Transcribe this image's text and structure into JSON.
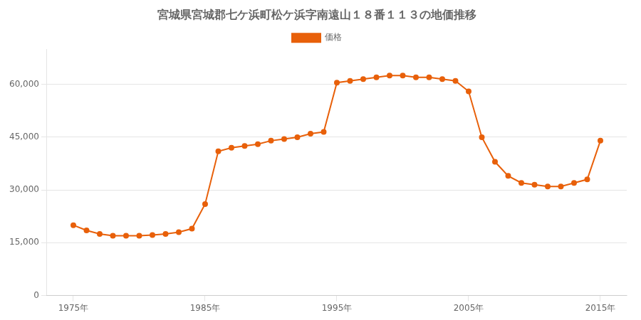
{
  "chart_data": {
    "type": "line",
    "title": "宮城県宮城郡七ケ浜町松ケ浜字南遠山１８番１１３の地価推移",
    "x": [
      1975,
      1976,
      1977,
      1978,
      1979,
      1980,
      1981,
      1982,
      1983,
      1984,
      1985,
      1986,
      1987,
      1988,
      1989,
      1990,
      1991,
      1992,
      1993,
      1994,
      1995,
      1996,
      1997,
      1998,
      1999,
      2000,
      2001,
      2002,
      2003,
      2004,
      2005,
      2006,
      2007,
      2008,
      2009,
      2010,
      2011,
      2012,
      2013,
      2014,
      2015
    ],
    "series": [
      {
        "name": "価格",
        "color": "#e8600a",
        "marker": "circle",
        "values": [
          20000,
          18500,
          17500,
          17000,
          17000,
          17000,
          17200,
          17500,
          18000,
          19000,
          26000,
          41000,
          42000,
          42500,
          43000,
          44000,
          44500,
          45000,
          46000,
          46500,
          60500,
          61000,
          61500,
          62000,
          62500,
          62500,
          62000,
          62000,
          61500,
          61000,
          58000,
          45000,
          38000,
          34000,
          32000,
          31500,
          31000,
          31000,
          32000,
          33000,
          44000
        ]
      }
    ],
    "xlim": [
      1973,
      2017
    ],
    "xticks": [
      {
        "value": 1975,
        "label": "1975年"
      },
      {
        "value": 1985,
        "label": "1985年"
      },
      {
        "value": 1995,
        "label": "1995年"
      },
      {
        "value": 2005,
        "label": "2005年"
      },
      {
        "value": 2015,
        "label": "2015年"
      }
    ],
    "ylim": [
      0,
      70000
    ],
    "yticks": [
      0,
      {
        "value": 15000,
        "label": "15,000"
      },
      {
        "value": 30000,
        "label": "30,000"
      },
      {
        "value": 45000,
        "label": "45,000"
      },
      {
        "value": 60000,
        "label": "60,000"
      }
    ],
    "grid": "y",
    "legend": "top"
  }
}
